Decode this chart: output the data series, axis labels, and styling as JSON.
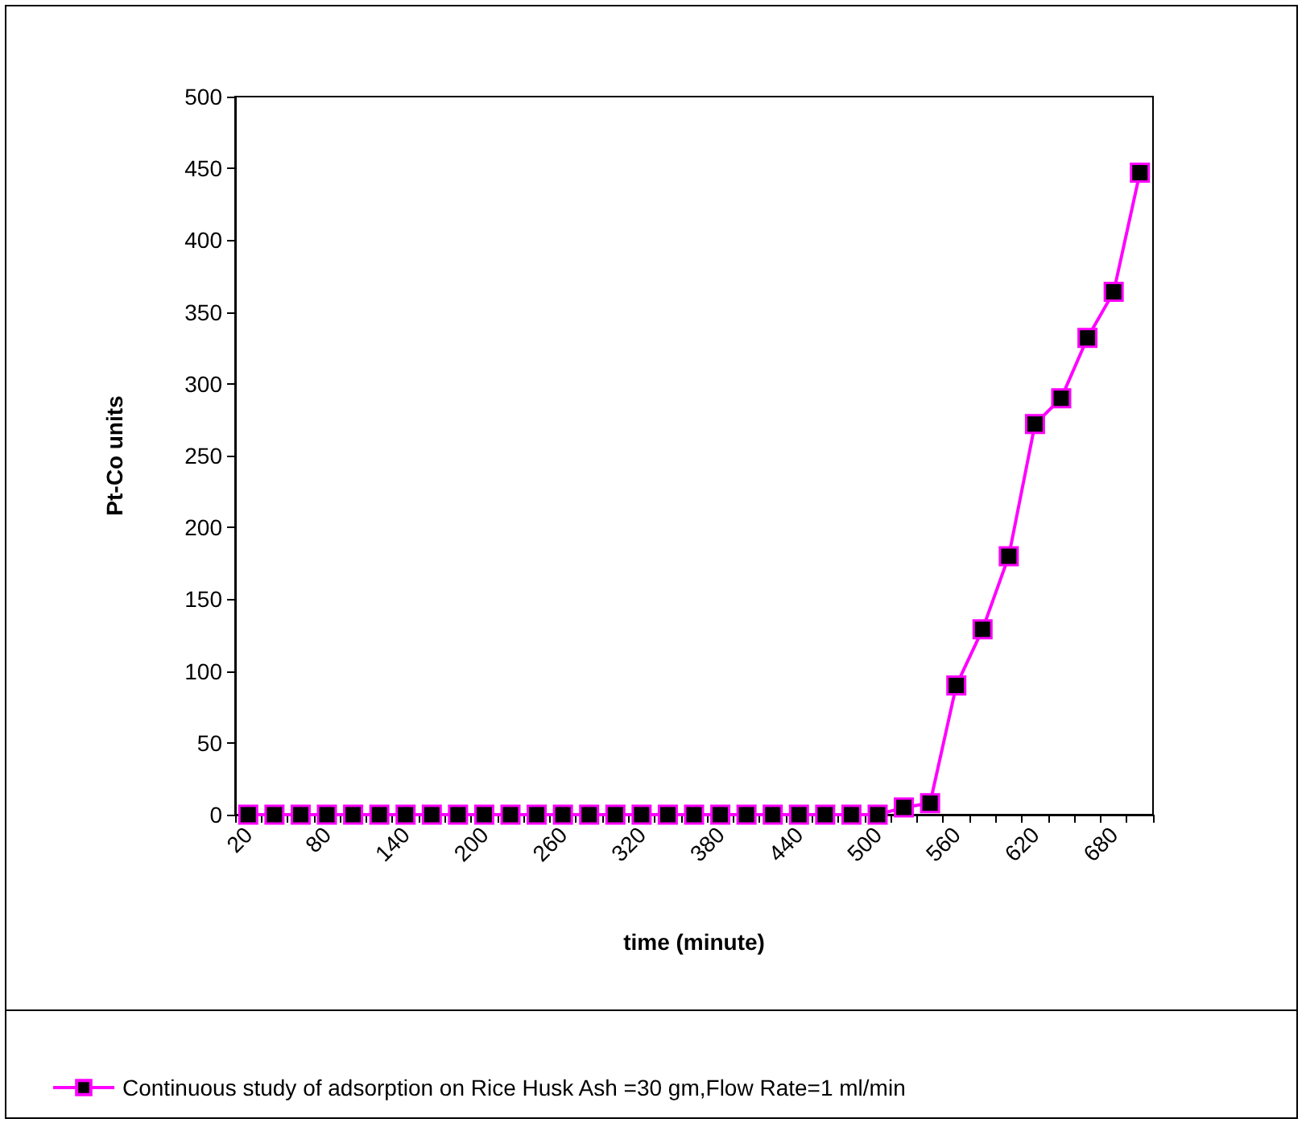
{
  "chart_data": {
    "type": "line",
    "xlabel": "time (minute)",
    "ylabel": "Pt-Co units",
    "categories": [
      "20",
      null,
      null,
      "80",
      null,
      null,
      "140",
      null,
      null,
      "200",
      null,
      null,
      "260",
      null,
      null,
      "320",
      null,
      null,
      "380",
      null,
      null,
      "440",
      null,
      null,
      "500",
      null,
      null,
      "560",
      null,
      null,
      "620",
      null,
      null,
      "680",
      null
    ],
    "series": [
      {
        "name": "Continuous study of adsorption on Rice Husk Ash =30 gm,Flow Rate=1 ml/min",
        "color": "#ff00ff",
        "values": [
          0,
          0,
          0,
          0,
          0,
          0,
          0,
          0,
          0,
          0,
          0,
          0,
          0,
          0,
          0,
          0,
          0,
          0,
          0,
          0,
          0,
          0,
          0,
          0,
          0,
          5,
          8,
          90,
          129,
          180,
          272,
          290,
          332,
          364,
          447
        ]
      }
    ],
    "ylim": [
      0,
      500
    ],
    "yticks": [
      0,
      50,
      100,
      150,
      200,
      250,
      300,
      350,
      400,
      450,
      500
    ],
    "grid": false,
    "legend": "bottom",
    "marker": "square",
    "line_style": "solid"
  }
}
